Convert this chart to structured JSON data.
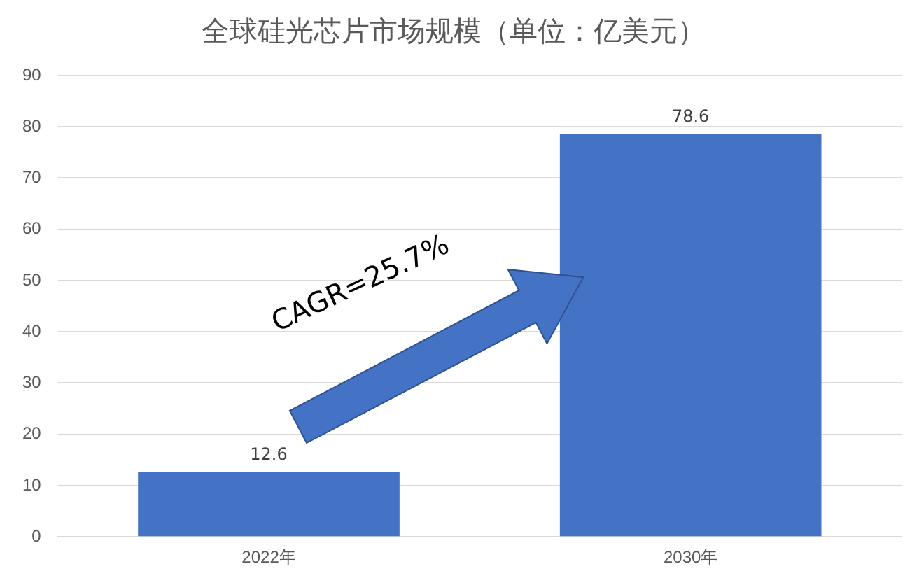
{
  "chart_data": {
    "type": "bar",
    "title": "全球硅光芯片市场规模（单位：亿美元）",
    "categories": [
      "2022年",
      "2030年"
    ],
    "values": [
      12.6,
      78.6
    ],
    "color": "#4472c4",
    "ylim": [
      0,
      90
    ],
    "yticks": [
      0,
      10,
      20,
      30,
      40,
      50,
      60,
      70,
      80,
      90
    ],
    "grid": "y",
    "data_labels": true,
    "annotations": [
      "CAGR=25.7%"
    ]
  }
}
